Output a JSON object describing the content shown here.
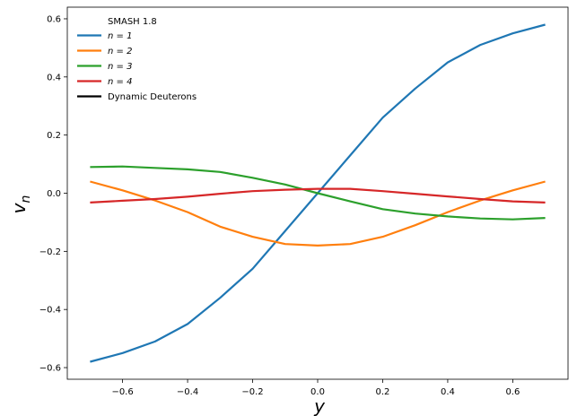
{
  "chart_data": {
    "type": "line",
    "xlabel": "y",
    "ylabel": "v",
    "ylabel_sub": "n",
    "xlim": [
      -0.77,
      0.77
    ],
    "ylim": [
      -0.64,
      0.64
    ],
    "x_ticks": [
      -0.6,
      -0.4,
      -0.2,
      0.0,
      0.2,
      0.4,
      0.6
    ],
    "x_tick_labels": [
      "−0.6",
      "−0.4",
      "−0.2",
      "0.0",
      "0.2",
      "0.4",
      "0.6"
    ],
    "y_ticks": [
      -0.6,
      -0.4,
      -0.2,
      0.0,
      0.2,
      0.4,
      0.6
    ],
    "y_tick_labels": [
      "−0.6",
      "−0.4",
      "−0.2",
      "0.0",
      "0.2",
      "0.4",
      "0.6"
    ],
    "grid": false,
    "legend": {
      "placement": "top-left",
      "title": "SMASH 1.8",
      "entries": [
        {
          "label": "n = 1",
          "color": "#1f77b4"
        },
        {
          "label": "n = 2",
          "color": "#ff7f0e"
        },
        {
          "label": "n = 3",
          "color": "#2ca02c"
        },
        {
          "label": "n = 4",
          "color": "#d62728"
        },
        {
          "label": "Dynamic Deuterons",
          "color": "#000000"
        }
      ]
    },
    "x": [
      -0.7,
      -0.6,
      -0.5,
      -0.4,
      -0.3,
      -0.2,
      -0.1,
      0.0,
      0.1,
      0.2,
      0.3,
      0.4,
      0.5,
      0.6,
      0.7
    ],
    "series": [
      {
        "name": "n = 1",
        "color": "#1f77b4",
        "values": [
          -0.58,
          -0.55,
          -0.51,
          -0.45,
          -0.36,
          -0.26,
          -0.13,
          0.0,
          0.13,
          0.26,
          0.36,
          0.45,
          0.51,
          0.55,
          0.58
        ]
      },
      {
        "name": "n = 2",
        "color": "#ff7f0e",
        "values": [
          0.04,
          0.01,
          -0.025,
          -0.065,
          -0.115,
          -0.15,
          -0.175,
          -0.18,
          -0.175,
          -0.15,
          -0.11,
          -0.065,
          -0.025,
          0.01,
          0.04
        ]
      },
      {
        "name": "n = 3",
        "color": "#2ca02c",
        "values": [
          0.09,
          0.092,
          0.087,
          0.082,
          0.073,
          0.053,
          0.03,
          0.0,
          -0.028,
          -0.055,
          -0.07,
          -0.08,
          -0.087,
          -0.09,
          -0.085
        ]
      },
      {
        "name": "n = 4",
        "color": "#d62728",
        "values": [
          -0.032,
          -0.026,
          -0.02,
          -0.012,
          -0.002,
          0.007,
          0.012,
          0.015,
          0.015,
          0.007,
          -0.002,
          -0.011,
          -0.02,
          -0.028,
          -0.032
        ]
      }
    ]
  }
}
